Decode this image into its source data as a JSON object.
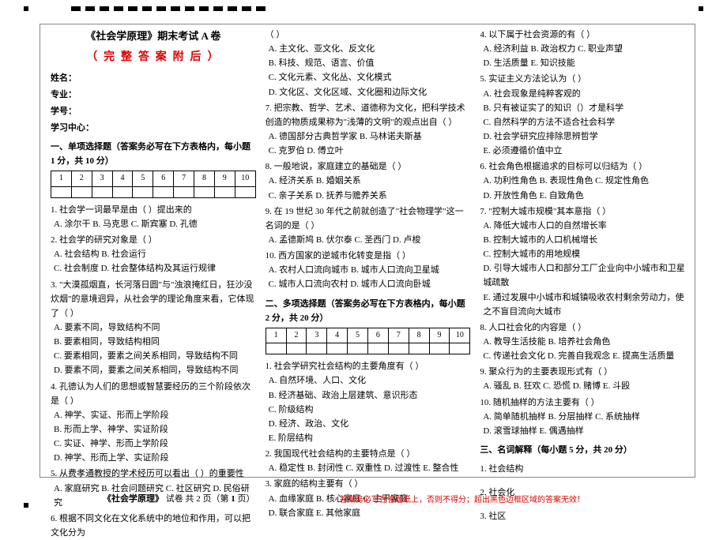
{
  "decor": {
    "dash_count": 14
  },
  "header": {
    "title": "《社会学原理》期末考试 A 卷",
    "answers_note": "（ 完 整 答 案 附 后 ）",
    "name_label": "姓名：",
    "major_label": "专业：",
    "id_label": "学号：",
    "center_label": "学习中心："
  },
  "section1": {
    "heading": "一、单项选择题（答案务必写在下方表格内，每小题 1 分，共 10 分）",
    "cells": [
      "1",
      "2",
      "3",
      "4",
      "5",
      "6",
      "7",
      "8",
      "9",
      "10"
    ]
  },
  "section2": {
    "heading": "二、多项选择题（答案务必写在下方表格内，每小题 2 分，共 20 分）",
    "cells": [
      "1",
      "2",
      "3",
      "4",
      "5",
      "6",
      "7",
      "8",
      "9",
      "10"
    ]
  },
  "section3": {
    "heading": "三、名词解释（每小题 5 分，共 20 分）",
    "items": [
      "1. 社会结构",
      "2. 社会化",
      "3. 社区"
    ]
  },
  "col1_questions": [
    {
      "q": "1. 社会学一词最早是由（     ）提出来的",
      "opts": " A. 涂尔干    B. 马克思    C. 斯宾塞    D. 孔德"
    },
    {
      "q": "2. 社会学的研究对象是（     ）",
      "opts": "A. 社会结构          B. 社会运行\nC. 社会制度          D. 社会整体结构及其运行规律"
    },
    {
      "q": "3. \"大漠孤烟直，长河落日圆\"与\"浊浪掩红日，狂沙没炊烟\"的意境迥异，从社会学的理论角度来看，它体现了（     ）",
      "opts": "A. 要素不同，导致结构不同\nB. 要素相同，导致结构相同\nC. 要素相同，要素之间关系相同，导致结构不同\nD. 要素不同，要素之间关系相同，导致结构不同"
    },
    {
      "q": "4. 孔德认为人们的思想或智慧要经历的三个阶段依次是（     ）",
      "opts": "A. 神学、实证、形而上学阶段\nB. 形而上学、神学、实证阶段\nC. 实证、神学、形而上学阶段\nD. 神学、形而上学、实证阶段"
    },
    {
      "q": "5. 从费孝通教授的学术经历可以看出（     ）的重要性",
      "opts": "A. 家庭研究    B. 社会问题研究    C. 社区研究    D. 民俗研究"
    },
    {
      "q": "6. 根据不同文化在文化系统中的地位和作用，可以把文化分为",
      "opts": ""
    }
  ],
  "col2_top": [
    {
      "q": "（     ）",
      "opts": "A. 主文化、亚文化、反文化\nB. 科技、规范、语言、价值\nC. 文化元素、文化丛、文化模式\nD. 文化区、文化区域、文化圈和边际文化"
    },
    {
      "q": "7. 把宗教、哲学、艺术、道德称为文化，把科学技术创造的物质成果称为\"浅薄的文明\"的观点出自（     ）",
      "opts": "A. 德国部分古典哲学家       B. 马林诺夫斯基\nC. 克罗伯                   D. 傅立叶"
    },
    {
      "q": "8. 一般地说，家庭建立的基础是（     ）",
      "opts": "A. 经济关系          B. 婚姻关系\nC. 亲子关系          D. 抚养与赡养关系"
    },
    {
      "q": "9. 在 19 世纪 30 年代之前就创造了\"社会物理学\"这一名词的是（     ）",
      "opts": "A. 孟德斯鸠    B. 伏尔泰    C. 圣西门    D. 卢梭"
    },
    {
      "q": "10. 西方国家的逆城市化转变是指（     ）",
      "opts": "A. 农村人口流向城市       B. 城市人口流向卫星城\nC. 城市人口流向农村       D. 城市人口流向卧城"
    }
  ],
  "col2_multi": [
    {
      "q": "1. 社会学研究社会结构的主要角度有（     ）",
      "opts": " A. 自然环境、人口、文化\n B. 经济基础、政治上层建筑、意识形态\n C. 阶级结构\n D. 经济、政治、文化\n E. 阶层结构"
    },
    {
      "q": "2. 我国现代社会结构的主要特点是（     ）",
      "opts": "A. 稳定性    B. 封闭性    C. 双重性    D. 过渡性    E. 整合性"
    },
    {
      "q": "3. 家庭的结构主要有（     ）",
      "opts": "A. 血缘家庭    B. 核心家庭    C. 主干家庭\nD. 联合家庭    E. 其他家庭"
    }
  ],
  "col3": [
    {
      "q": "4. 以下属于社会资源的有（     ）",
      "opts": "A. 经济利益    B. 政治权力    C. 职业声望\nD. 生活质量    E. 知识技能"
    },
    {
      "q": "5. 实证主义方法论认为（     ）",
      "opts": "A. 社会现象是纯粹客观的\nB. 只有被证实了的知识（）才是科学\nC. 自然科学的方法不适合社会科学\nD. 社会学研究应排除思辨哲学\nE. 必须遵循价值中立"
    },
    {
      "q": "6. 社会角色根据追求的目标可以归结为（     ）",
      "opts": "A. 功利性角色    B. 表现性角色    C. 规定性角色\nD. 开放性角色    E. 自致角色"
    },
    {
      "q": "7. \"控制大城市规模\"其本意指（     ）",
      "opts": "A. 降低大城市人口的自然增长率\nB. 控制大城市的人口机械增长\nC. 控制大城市的用地规模\nD. 引导大城市人口和部分工厂企业向中小城市和卫星城疏散\nE. 通过发展中小城市和城镇吸收农村剩余劳动力，使之不盲目流向大城市"
    },
    {
      "q": "8. 人口社会化的内容是（     ）",
      "opts": "A. 教导生活技能    B. 培养社会角色\nC. 传递社会文化    D. 完善自我观念    E. 提高生活质量"
    },
    {
      "q": "9. 聚众行为的主要表现形式有（     ）",
      "opts": "A. 骚乱    B. 狂欢    C. 恐慌    D. 赌博    E. 斗殴"
    },
    {
      "q": "10. 随机抽样的方法主要有（     ）",
      "opts": "A. 简单随机抽样    B. 分层抽样    C. 系统抽样\nD. 滚雪球抽样    E. 偶遇抽样"
    }
  ],
  "footer": {
    "left_a": "《社会学原理》",
    "left_b": "   试卷 共 2 页（第 ",
    "left_page": "1",
    "left_c": " 页）",
    "right": "答案务必写在答题纸上，否则不得分；超出黑色边框区域的答案无效！"
  }
}
